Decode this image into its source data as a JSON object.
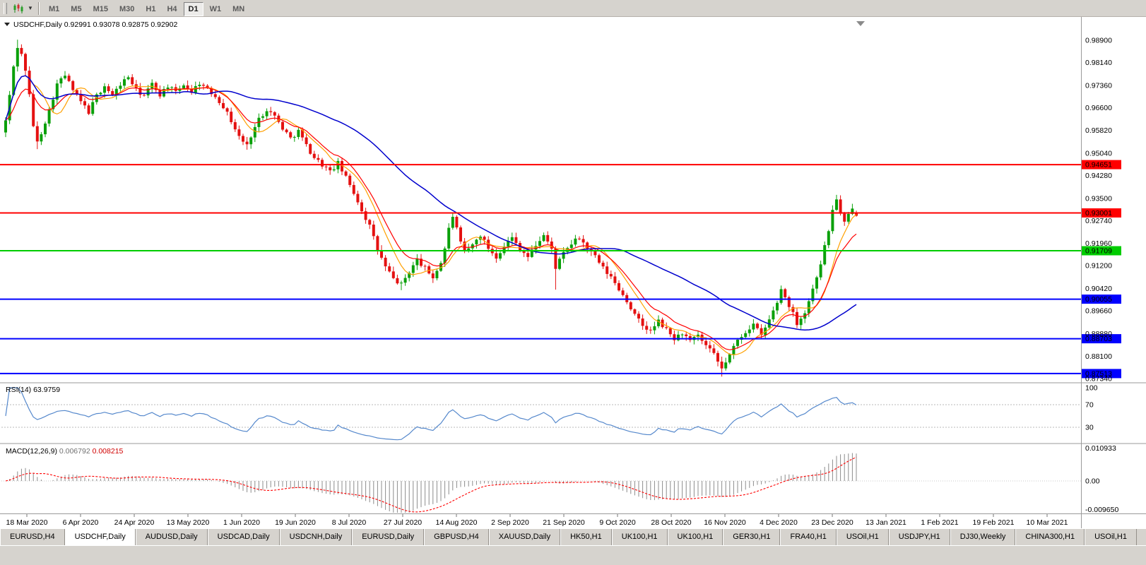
{
  "toolbar": {
    "chart_type_icon": "candlestick-chart-icon",
    "timeframes": [
      "M1",
      "M5",
      "M15",
      "M30",
      "H1",
      "H4",
      "D1",
      "W1",
      "MN"
    ],
    "active_timeframe": "D1"
  },
  "rsi": {
    "name": "RSI",
    "period": "14",
    "value": "63.9759",
    "axis_labels": [
      "100",
      "70",
      "30"
    ],
    "levels": [
      70,
      30
    ]
  },
  "macd": {
    "name": "MACD",
    "params": "12,26,9",
    "value_main": "0.006792",
    "value_signal": "0.008215",
    "axis_labels": [
      "0.010933",
      "0.00",
      "-0.009650"
    ]
  },
  "tabs": {
    "active": "USDCHF,Daily",
    "items": [
      "EURUSD,H4",
      "USDCHF,Daily",
      "AUDUSD,Daily",
      "USDCAD,Daily",
      "USDCNH,Daily",
      "EURUSD,Daily",
      "GBPUSD,H4",
      "XAUUSD,Daily",
      "HK50,H1",
      "UK100,H1",
      "UK100,H1",
      "GER30,H1",
      "FRA40,H1",
      "USOil,H1",
      "USDJPY,H1",
      "DJ30,Weekly",
      "CHINA300,H1",
      "USOil,H1"
    ]
  },
  "chart_data": {
    "type": "candlestick",
    "symbol": "USDCHF",
    "period": "Daily",
    "bars": 216,
    "current_bar": {
      "open": 0.92991,
      "high": 0.93078,
      "low": 0.92875,
      "close": 0.92902
    },
    "y_axis_ticks": [
      0.989,
      0.9814,
      0.9736,
      0.966,
      0.9582,
      0.9504,
      0.9428,
      0.935,
      0.9274,
      0.9196,
      0.912,
      0.9042,
      0.8966,
      0.8888,
      0.881,
      0.8734
    ],
    "x_axis_dates": [
      "18 Mar 2020",
      "6 Apr 2020",
      "24 Apr 2020",
      "13 May 2020",
      "1 Jun 2020",
      "19 Jun 2020",
      "8 Jul 2020",
      "27 Jul 2020",
      "14 Aug 2020",
      "2 Sep 2020",
      "21 Sep 2020",
      "9 Oct 2020",
      "28 Oct 2020",
      "16 Nov 2020",
      "4 Dec 2020",
      "23 Dec 2020",
      "13 Jan 2021",
      "1 Feb 2021",
      "19 Feb 2021",
      "10 Mar 2021"
    ],
    "horizontal_levels": [
      {
        "price": 0.94651,
        "color": "#ff0000"
      },
      {
        "price": 0.93001,
        "color": "#ff0000"
      },
      {
        "price": 0.91709,
        "color": "#00cc00"
      },
      {
        "price": 0.90055,
        "color": "#0000ff"
      },
      {
        "price": 0.88703,
        "color": "#0000ff"
      },
      {
        "price": 0.87513,
        "color": "#0000ff"
      }
    ],
    "close_anchors": [
      [
        0,
        0.9615
      ],
      [
        1,
        0.97
      ],
      [
        2,
        0.98
      ],
      [
        3,
        0.9868
      ],
      [
        4,
        0.984
      ],
      [
        5,
        0.979
      ],
      [
        6,
        0.97
      ],
      [
        7,
        0.96
      ],
      [
        8,
        0.954
      ],
      [
        9,
        0.9575
      ],
      [
        11,
        0.965
      ],
      [
        13,
        0.974
      ],
      [
        15,
        0.977
      ],
      [
        17,
        0.972
      ],
      [
        19,
        0.968
      ],
      [
        21,
        0.9645
      ],
      [
        23,
        0.97
      ],
      [
        25,
        0.9735
      ],
      [
        27,
        0.97
      ],
      [
        29,
        0.974
      ],
      [
        31,
        0.9765
      ],
      [
        33,
        0.972
      ],
      [
        35,
        0.97
      ],
      [
        37,
        0.974
      ],
      [
        39,
        0.9705
      ],
      [
        41,
        0.9735
      ],
      [
        43,
        0.971
      ],
      [
        45,
        0.974
      ],
      [
        47,
        0.9715
      ],
      [
        49,
        0.9745
      ],
      [
        51,
        0.972
      ],
      [
        53,
        0.97
      ],
      [
        55,
        0.9665
      ],
      [
        57,
        0.9615
      ],
      [
        59,
        0.956
      ],
      [
        61,
        0.953
      ],
      [
        62,
        0.9565
      ],
      [
        64,
        0.962
      ],
      [
        66,
        0.9655
      ],
      [
        68,
        0.963
      ],
      [
        70,
        0.959
      ],
      [
        72,
        0.9555
      ],
      [
        74,
        0.958
      ],
      [
        76,
        0.953
      ],
      [
        78,
        0.949
      ],
      [
        80,
        0.9465
      ],
      [
        82,
        0.944
      ],
      [
        84,
        0.947
      ],
      [
        86,
        0.942
      ],
      [
        88,
        0.937
      ],
      [
        90,
        0.931
      ],
      [
        92,
        0.9255
      ],
      [
        94,
        0.9175
      ],
      [
        96,
        0.9115
      ],
      [
        98,
        0.9075
      ],
      [
        100,
        0.9055
      ],
      [
        102,
        0.91
      ],
      [
        104,
        0.914
      ],
      [
        106,
        0.911
      ],
      [
        108,
        0.908
      ],
      [
        110,
        0.913
      ],
      [
        111,
        0.918
      ],
      [
        112,
        0.9245
      ],
      [
        113,
        0.929
      ],
      [
        114,
        0.9245
      ],
      [
        115,
        0.9195
      ],
      [
        116,
        0.9165
      ],
      [
        118,
        0.919
      ],
      [
        120,
        0.9225
      ],
      [
        122,
        0.918
      ],
      [
        124,
        0.915
      ],
      [
        126,
        0.919
      ],
      [
        128,
        0.9215
      ],
      [
        130,
        0.918
      ],
      [
        132,
        0.915
      ],
      [
        134,
        0.919
      ],
      [
        136,
        0.9225
      ],
      [
        138,
        0.9175
      ],
      [
        139,
        0.9115
      ],
      [
        141,
        0.916
      ],
      [
        143,
        0.9195
      ],
      [
        145,
        0.9215
      ],
      [
        147,
        0.918
      ],
      [
        149,
        0.915
      ],
      [
        151,
        0.911
      ],
      [
        153,
        0.908
      ],
      [
        155,
        0.904
      ],
      [
        157,
        0.9
      ],
      [
        159,
        0.895
      ],
      [
        161,
        0.8915
      ],
      [
        163,
        0.8895
      ],
      [
        165,
        0.893
      ],
      [
        167,
        0.89
      ],
      [
        169,
        0.887
      ],
      [
        171,
        0.889
      ],
      [
        173,
        0.886
      ],
      [
        175,
        0.888
      ],
      [
        177,
        0.8845
      ],
      [
        179,
        0.8815
      ],
      [
        180,
        0.879
      ],
      [
        181,
        0.8768
      ],
      [
        183,
        0.8815
      ],
      [
        185,
        0.8865
      ],
      [
        187,
        0.8895
      ],
      [
        189,
        0.892
      ],
      [
        191,
        0.888
      ],
      [
        193,
        0.8935
      ],
      [
        195,
        0.8995
      ],
      [
        196,
        0.904
      ],
      [
        198,
        0.8985
      ],
      [
        200,
        0.8925
      ],
      [
        202,
        0.896
      ],
      [
        204,
        0.904
      ],
      [
        206,
        0.913
      ],
      [
        208,
        0.924
      ],
      [
        209,
        0.931
      ],
      [
        210,
        0.935
      ],
      [
        211,
        0.9295
      ],
      [
        212,
        0.9265
      ],
      [
        213,
        0.929
      ],
      [
        214,
        0.9312
      ],
      [
        215,
        0.929
      ]
    ],
    "spikes": [
      {
        "i": 3,
        "h": 0.9892
      },
      {
        "i": 8,
        "l": 0.9518
      },
      {
        "i": 61,
        "l": 0.9516
      },
      {
        "i": 100,
        "l": 0.9036
      },
      {
        "i": 113,
        "h": 0.9298
      },
      {
        "i": 139,
        "l": 0.9038
      },
      {
        "i": 181,
        "l": 0.8741
      },
      {
        "i": 196,
        "h": 0.9052
      },
      {
        "i": 210,
        "h": 0.9362
      }
    ],
    "colors": {
      "bull": "#0aa00a",
      "bear": "#e41111",
      "ma_fast_red": "#ff0000",
      "ma_fast_orange": "#ffa000",
      "ma_slow_blue": "#0000cd",
      "rsi_line": "#5588cc",
      "macd_hist": "#8c8c8c",
      "macd_signal": "#ff0000"
    }
  }
}
